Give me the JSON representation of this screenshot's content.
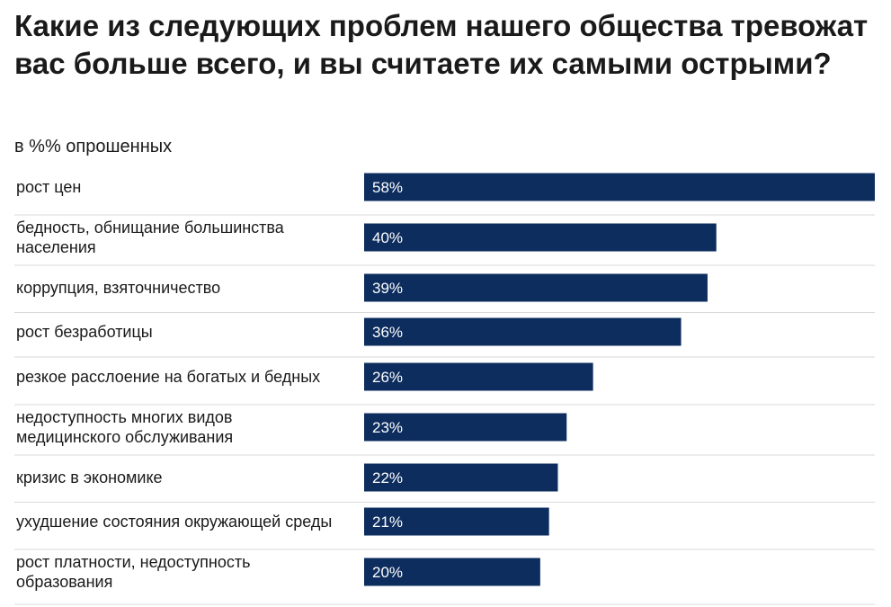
{
  "header": {
    "title": "Какие из следующих проблем нашего общества тревожат вас больше всего, и вы считаете их самыми острыми?",
    "subtitle": "в %% опрошенных"
  },
  "chart_data": {
    "type": "bar",
    "orientation": "horizontal",
    "title": "Какие из следующих проблем нашего общества тревожат вас больше всего, и вы считаете их самыми острыми?",
    "subtitle": "в %% опрошенных",
    "categories": [
      "рост цен",
      "бедность, обнищание большинства населения",
      "коррупция, взяточничество",
      "рост безработицы",
      "резкое расслоение на богатых и бедных",
      "недоступность многих видов медицинского обслуживания",
      "кризис в экономике",
      "ухудшение состояния окружающей среды",
      "рост платности, недоступность образования"
    ],
    "category_lines": [
      [
        "рост цен"
      ],
      [
        "бедность, обнищание большинства",
        "населения"
      ],
      [
        "коррупция, взяточничество"
      ],
      [
        "рост безработицы"
      ],
      [
        "резкое расслоение на богатых и бедных"
      ],
      [
        "недоступность многих видов",
        "медицинского обслуживания"
      ],
      [
        "кризис в экономике"
      ],
      [
        "ухудшение состояния окружающей среды"
      ],
      [
        "рост платности, недоступность",
        "образования"
      ]
    ],
    "values": [
      58,
      40,
      39,
      36,
      26,
      23,
      22,
      21,
      20
    ],
    "value_labels": [
      "58%",
      "40%",
      "39%",
      "36%",
      "26%",
      "23%",
      "22%",
      "21%",
      "20%"
    ],
    "unit": "%",
    "xlim": [
      0,
      58
    ],
    "xlabel": "",
    "ylabel": "",
    "grid": false,
    "colors": {
      "bar": "#0d2d5e",
      "value_text": "#ffffff",
      "separator": "#d9d9d9"
    }
  }
}
